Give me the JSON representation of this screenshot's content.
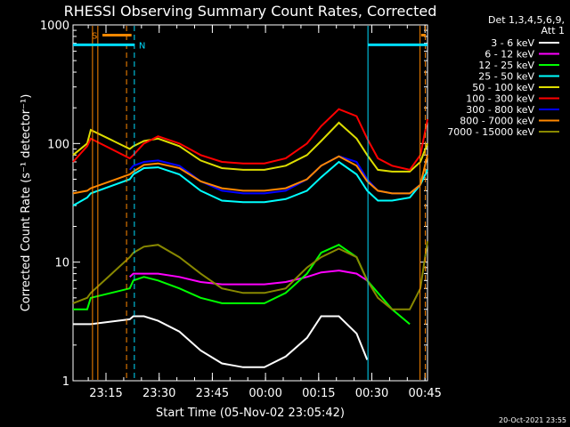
{
  "chart_data": {
    "type": "line",
    "title": "RHESSI Observing Summary Count Rates, Corrected",
    "xlabel": "Start Time (05-Nov-02 23:05:42)",
    "ylabel": "Corrected Count Rate (s⁻¹ detector⁻¹)",
    "yscale": "log",
    "ylim": [
      1,
      1000
    ],
    "xlim_minutes_after_start": [
      0,
      100
    ],
    "ytick_labels": [
      "1",
      "10",
      "100",
      "1000"
    ],
    "ytick_values": [
      1,
      10,
      100,
      1000
    ],
    "xtick_labels": [
      "23:15",
      "23:30",
      "23:45",
      "00:00",
      "00:15",
      "00:30",
      "00:45"
    ],
    "xtick_minutes_after_start": [
      9.3,
      24.3,
      39.3,
      54.3,
      69.3,
      84.3,
      99.3
    ],
    "legend": {
      "position": "right",
      "header_line1": "Det 1,3,4,5,6,9,",
      "header_line2": "Att 1"
    },
    "annotations": {
      "footer_date": "20-Oct-2021 23:55",
      "flag_S": "S",
      "flag_N": "N"
    },
    "series": [
      {
        "name": "3 - 6 keV",
        "color": "#ffffff",
        "x": [
          0,
          4,
          5,
          16,
          17,
          20,
          24,
          30,
          36,
          42,
          48,
          54,
          60,
          66,
          70,
          75,
          80,
          83
        ],
        "y": [
          3,
          3,
          3,
          3.3,
          3.5,
          3.5,
          3.2,
          2.6,
          1.8,
          1.4,
          1.3,
          1.3,
          1.6,
          2.3,
          3.5,
          3.5,
          2.5,
          1.5
        ]
      },
      {
        "name": "6 - 12 keV",
        "color": "#ff00ff",
        "x": [
          16,
          17,
          20,
          24,
          30,
          36,
          42,
          48,
          54,
          60,
          66,
          70,
          75,
          80,
          83
        ],
        "y": [
          7.5,
          8,
          8,
          8,
          7.5,
          6.8,
          6.5,
          6.5,
          6.5,
          6.8,
          7.5,
          8.2,
          8.5,
          8,
          7
        ]
      },
      {
        "name": "12 - 25 keV",
        "color": "#00ff00",
        "x": [
          0,
          4,
          5,
          16,
          17,
          20,
          24,
          30,
          36,
          42,
          48,
          54,
          60,
          66,
          70,
          75,
          80,
          83,
          90,
          95
        ],
        "y": [
          4,
          4,
          5,
          6,
          7,
          7.5,
          7,
          6,
          5,
          4.5,
          4.5,
          4.5,
          5.5,
          8,
          12,
          14,
          11,
          7,
          4,
          3
        ]
      },
      {
        "name": "25 - 50 keV",
        "color": "#00ffff",
        "x": [
          0,
          4,
          5,
          16,
          17,
          20,
          24,
          30,
          36,
          42,
          48,
          54,
          60,
          66,
          70,
          75,
          80,
          83,
          86,
          90,
          95,
          98,
          100
        ],
        "y": [
          30,
          35,
          38,
          50,
          55,
          62,
          63,
          55,
          40,
          33,
          32,
          32,
          34,
          40,
          52,
          70,
          55,
          40,
          33,
          33,
          35,
          45,
          60
        ]
      },
      {
        "name": "50 - 100 keV",
        "color": "#dddd00",
        "x": [
          0,
          4,
          5,
          16,
          17,
          20,
          24,
          30,
          36,
          42,
          48,
          54,
          60,
          66,
          70,
          75,
          80,
          83,
          86,
          90,
          95,
          98,
          100
        ],
        "y": [
          80,
          100,
          130,
          90,
          95,
          105,
          110,
          95,
          72,
          62,
          60,
          60,
          65,
          80,
          105,
          150,
          110,
          80,
          60,
          58,
          58,
          70,
          100
        ]
      },
      {
        "name": "100 - 300 keV",
        "color": "#ff0000",
        "x": [
          0,
          4,
          5,
          16,
          17,
          20,
          24,
          30,
          36,
          42,
          48,
          54,
          60,
          66,
          70,
          75,
          80,
          83,
          86,
          90,
          95,
          98,
          100
        ],
        "y": [
          70,
          95,
          110,
          75,
          80,
          100,
          115,
          100,
          80,
          70,
          68,
          68,
          75,
          100,
          140,
          195,
          170,
          110,
          75,
          65,
          60,
          80,
          160
        ]
      },
      {
        "name": "300 - 800 keV",
        "color": "#0000ff",
        "x": [
          16,
          17,
          20,
          24,
          30,
          36,
          42,
          48,
          54,
          60,
          66,
          70,
          75,
          80,
          83,
          86,
          90,
          95,
          98
        ],
        "y": [
          60,
          65,
          70,
          72,
          65,
          48,
          40,
          38,
          38,
          40,
          50,
          65,
          78,
          70,
          50,
          40,
          38,
          38,
          45
        ]
      },
      {
        "name": "800 - 7000 keV",
        "color": "#ff8800",
        "x": [
          0,
          4,
          5,
          16,
          17,
          20,
          24,
          30,
          36,
          42,
          48,
          54,
          60,
          66,
          70,
          75,
          80,
          83,
          86,
          90,
          95,
          98,
          100
        ],
        "y": [
          38,
          40,
          42,
          55,
          58,
          66,
          68,
          62,
          48,
          42,
          40,
          40,
          42,
          50,
          65,
          78,
          65,
          48,
          40,
          38,
          38,
          45,
          80
        ]
      },
      {
        "name": "7000 - 15000 keV",
        "color": "#888800",
        "x": [
          0,
          4,
          5,
          16,
          17,
          20,
          24,
          30,
          36,
          42,
          48,
          54,
          60,
          66,
          70,
          75,
          80,
          83,
          86,
          90,
          95,
          98,
          100
        ],
        "y": [
          4.5,
          5,
          5.5,
          11,
          12,
          13.5,
          14,
          11,
          8,
          6,
          5.5,
          5.5,
          6,
          9,
          11,
          13,
          11,
          7,
          5,
          4,
          4,
          6,
          15
        ]
      }
    ],
    "flag_bars": {
      "S_attenuator": {
        "color": "#ff8800",
        "x_ranges": [
          [
            8.3,
            16.5
          ],
          [
            98.2,
            99.5
          ]
        ],
        "y": 820
      },
      "N_night": {
        "color": "#00ddff",
        "x_ranges": [
          [
            0,
            17.3
          ],
          [
            83.2,
            100
          ]
        ],
        "y": 680
      }
    },
    "vertical_lines": [
      {
        "x": 5.5,
        "color": "#ff8800",
        "style": "solid"
      },
      {
        "x": 7.0,
        "color": "#ff8800",
        "style": "solid"
      },
      {
        "x": 15.1,
        "color": "#ff8800",
        "style": "dashed"
      },
      {
        "x": 17.3,
        "color": "#00ddff",
        "style": "dashed"
      },
      {
        "x": 83.2,
        "color": "#00ddff",
        "style": "solid"
      },
      {
        "x": 97.9,
        "color": "#ff8800",
        "style": "solid"
      },
      {
        "x": 99.4,
        "color": "#ff8800",
        "style": "dashed"
      }
    ]
  }
}
